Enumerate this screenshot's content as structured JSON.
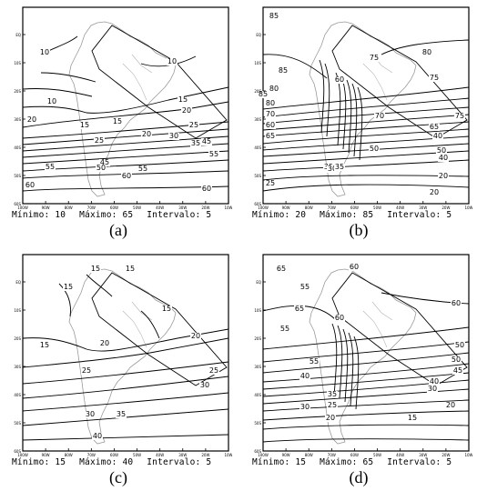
{
  "panels": [
    {
      "caption": "(a)",
      "stats": {
        "min_label": "Mínimo: 10",
        "max_label": "Máximo: 65",
        "int_label": "Intervalo: 5"
      },
      "labels": [
        "10",
        "10",
        "10",
        "15",
        "15",
        "15",
        "20",
        "20",
        "20",
        "25",
        "25",
        "30",
        "35",
        "45",
        "45",
        "50",
        "55",
        "55",
        "55",
        "60",
        "60",
        "60"
      ]
    },
    {
      "caption": "(b)",
      "stats": {
        "min_label": "Mínimo: 20",
        "max_label": "Máximo: 85",
        "int_label": "Intervalo: 5"
      },
      "labels": [
        "85",
        "80",
        "85",
        "75",
        "75",
        "80",
        "60",
        "85",
        "80",
        "75",
        "70",
        "70",
        "65",
        "60",
        "65",
        "40",
        "50",
        "50",
        "40",
        "35",
        "30",
        "35",
        "25",
        "20",
        "20"
      ]
    },
    {
      "caption": "(c)",
      "stats": {
        "min_label": "Mínimo: 15",
        "max_label": "Máximo: 40",
        "int_label": "Intervalo: 5"
      },
      "labels": [
        "15",
        "15",
        "15",
        "15",
        "15",
        "20",
        "20",
        "25",
        "25",
        "30",
        "30",
        "35",
        "40"
      ]
    },
    {
      "caption": "(d)",
      "stats": {
        "min_label": "Mínimo: 15",
        "max_label": "Máximo: 65",
        "int_label": "Intervalo: 5"
      },
      "labels": [
        "65",
        "60",
        "60",
        "55",
        "65",
        "60",
        "55",
        "50",
        "50",
        "55",
        "45",
        "40",
        "40",
        "35",
        "30",
        "25",
        "30",
        "20",
        "15",
        "20"
      ]
    }
  ],
  "lat_ticks": [
    "EQ",
    "10S",
    "20S",
    "30S",
    "40S",
    "50S",
    "60S"
  ],
  "lon_ticks": [
    "100W",
    "90W",
    "80W",
    "70W",
    "60W",
    "50W",
    "40W",
    "30W",
    "20W",
    "10W"
  ]
}
